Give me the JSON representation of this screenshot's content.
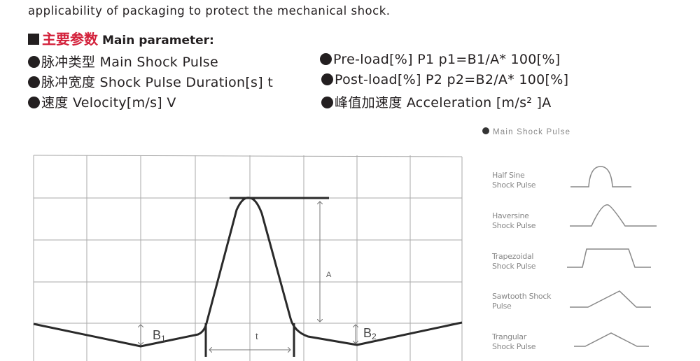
{
  "intro_text": "applicability of packaging to protect the mechanical shock.",
  "heading": {
    "cn": "主要参数",
    "en": "Main parameter:"
  },
  "params_left": [
    "脉冲类型 Main Shock Pulse",
    "脉冲宽度 Shock Pulse Duration[s] t",
    "速度 Velocity[m/s] V"
  ],
  "params_right": [
    "Pre-load[%] P1 p1=B1/A* 100[%]",
    "Post-load[%] P2 p2=B2/A* 100[%]",
    "峰值加速度 Acceleration [m/s² ]A"
  ],
  "diagram": {
    "label_a": "A",
    "label_t": "t",
    "label_b1": "B",
    "label_b1_sub": "1",
    "label_b2": "B",
    "label_b2_sub": "2"
  },
  "legend": {
    "title": "Main Shock Pulse",
    "items": [
      {
        "line1": "Half Sine",
        "line2": "Shock Pulse",
        "shape": "half-sine"
      },
      {
        "line1": "Haversine",
        "line2": "Shock Pulse",
        "shape": "haversine"
      },
      {
        "line1": "Trapezoidal",
        "line2": "Shock Pulse",
        "shape": "trapezoidal"
      },
      {
        "line1": "Sawtooth Shock",
        "line2": "Pulse",
        "shape": "sawtooth"
      },
      {
        "line1": "Trangular",
        "line2": "Shock Pulse",
        "shape": "triangular"
      }
    ]
  },
  "colors": {
    "text": "#231f20",
    "accent": "#d3203a",
    "grid": "#999999",
    "legend": "#888888"
  }
}
